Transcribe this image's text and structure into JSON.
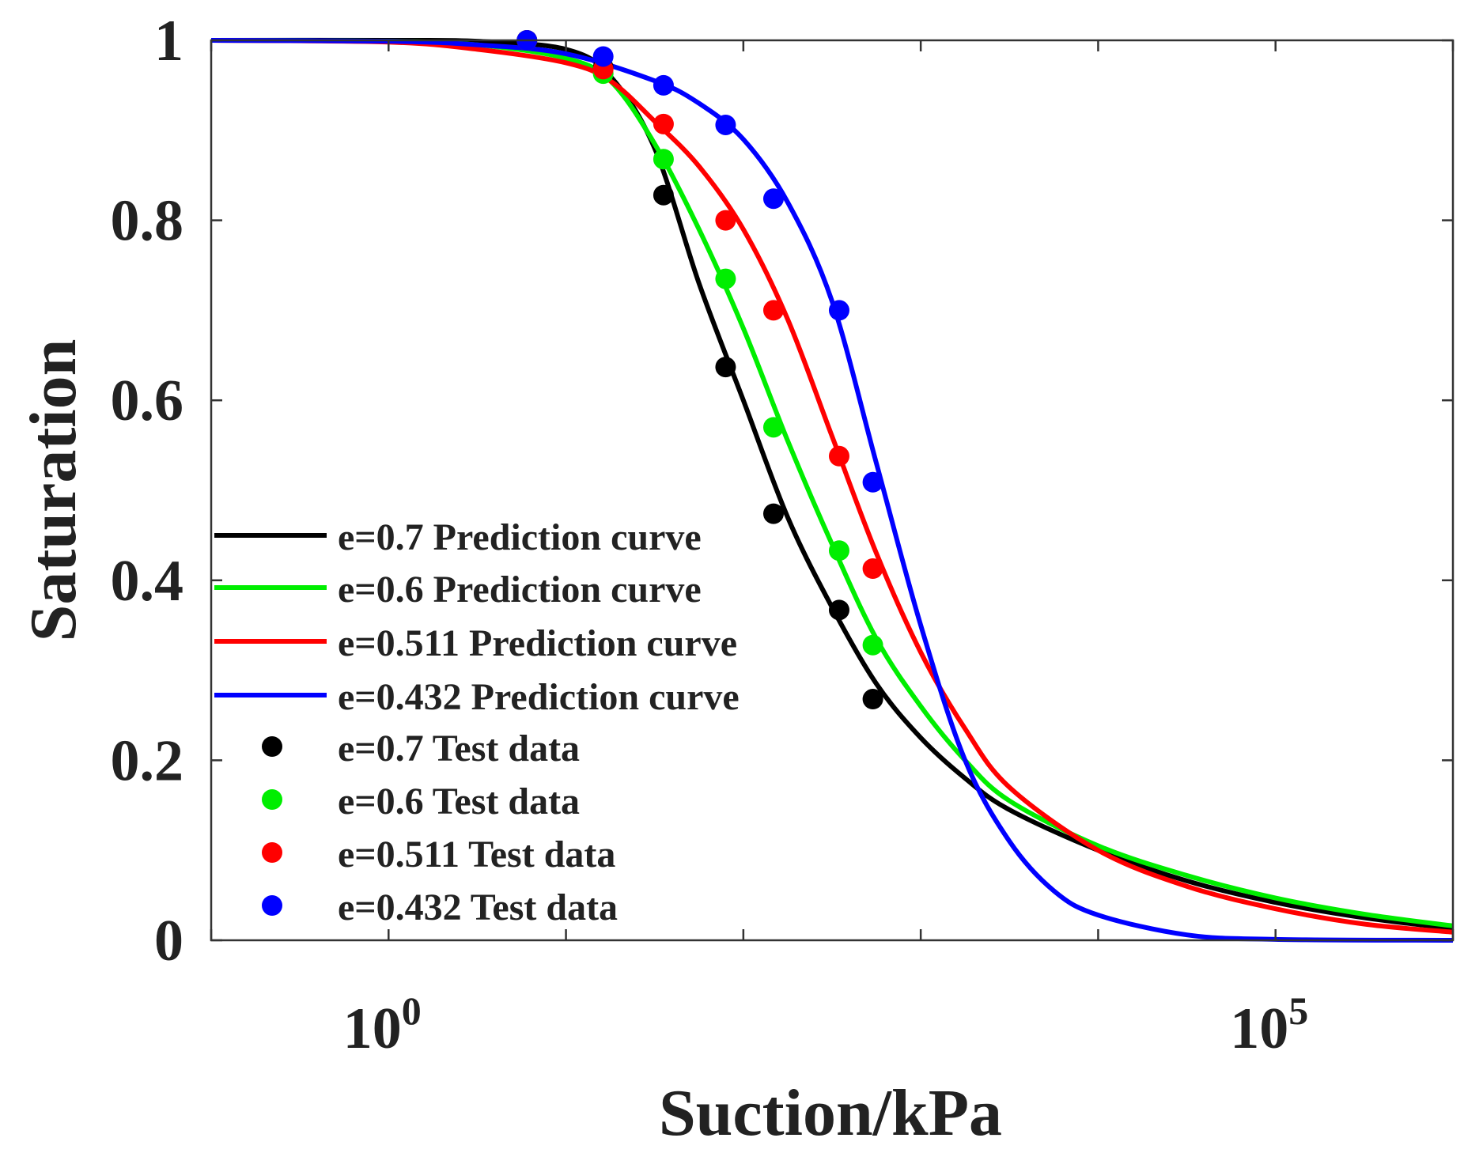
{
  "chart_data": {
    "type": "line",
    "title": "",
    "xlabel": "Suction/kPa",
    "ylabel": "Saturation",
    "xscale": "log",
    "xlim_log10": [
      -1,
      6
    ],
    "ylim": [
      0,
      1
    ],
    "xticks": [
      {
        "base": "10",
        "exp": "0",
        "log10": 0
      },
      {
        "base": "10",
        "exp": "5",
        "log10": 5
      }
    ],
    "yticks": [
      {
        "label": "0",
        "value": 0
      },
      {
        "label": "0.2",
        "value": 0.2
      },
      {
        "label": "0.4",
        "value": 0.4
      },
      {
        "label": "0.6",
        "value": 0.6
      },
      {
        "label": "0.8",
        "value": 0.8
      },
      {
        "label": "1",
        "value": 1
      }
    ],
    "grid": false,
    "legend_position": "lower-left",
    "curves": [
      {
        "name": "e=0.7 Prediction curve",
        "color": "#000000",
        "log10_x": [
          -1,
          0,
          0.5,
          1,
          1.25,
          1.5,
          1.75,
          2,
          2.25,
          2.5,
          2.75,
          3,
          3.25,
          3.5,
          4,
          4.5,
          5,
          5.5,
          6
        ],
        "y": [
          1,
          1,
          0.999,
          0.99,
          0.96,
          0.88,
          0.73,
          0.6,
          0.47,
          0.37,
          0.285,
          0.225,
          0.18,
          0.145,
          0.1,
          0.066,
          0.042,
          0.025,
          0.013
        ]
      },
      {
        "name": "e=0.6 Prediction curve",
        "color": "#00ee00",
        "log10_x": [
          -1,
          0,
          0.5,
          1,
          1.25,
          1.5,
          1.75,
          2,
          2.25,
          2.5,
          2.75,
          3,
          3.25,
          3.5,
          4,
          4.5,
          5,
          5.5,
          6
        ],
        "y": [
          1,
          0.999,
          0.995,
          0.98,
          0.955,
          0.885,
          0.79,
          0.68,
          0.555,
          0.44,
          0.335,
          0.26,
          0.2,
          0.155,
          0.105,
          0.072,
          0.047,
          0.029,
          0.016
        ]
      },
      {
        "name": "e=0.511 Prediction curve",
        "color": "#ff0000",
        "log10_x": [
          -1,
          0,
          0.5,
          1,
          1.25,
          1.5,
          1.75,
          2,
          2.25,
          2.5,
          2.75,
          3,
          3.25,
          3.5,
          4,
          4.5,
          5,
          5.5,
          6
        ],
        "y": [
          1,
          0.998,
          0.99,
          0.975,
          0.955,
          0.91,
          0.86,
          0.79,
          0.69,
          0.56,
          0.43,
          0.32,
          0.235,
          0.17,
          0.1,
          0.06,
          0.035,
          0.018,
          0.009
        ]
      },
      {
        "name": "e=0.432 Prediction curve",
        "color": "#0000ff",
        "log10_x": [
          -1,
          0,
          0.5,
          1,
          1.5,
          1.75,
          2,
          2.25,
          2.5,
          2.75,
          3,
          3.25,
          3.5,
          3.75,
          4,
          4.5,
          5,
          6
        ],
        "y": [
          1,
          0.999,
          0.995,
          0.985,
          0.955,
          0.93,
          0.89,
          0.82,
          0.71,
          0.53,
          0.35,
          0.2,
          0.11,
          0.055,
          0.028,
          0.006,
          0.001,
          0
        ]
      }
    ],
    "test_data": [
      {
        "name": "e=0.7 Test data",
        "color": "#000000",
        "log10_x": [
          0.78,
          1.21,
          1.55,
          1.9,
          2.17,
          2.54,
          2.73
        ],
        "y": [
          1.0,
          0.97,
          0.828,
          0.637,
          0.474,
          0.367,
          0.268
        ]
      },
      {
        "name": "e=0.6 Test data",
        "color": "#00ee00",
        "log10_x": [
          0.78,
          1.21,
          1.55,
          1.9,
          2.17,
          2.54,
          2.73
        ],
        "y": [
          1.0,
          0.963,
          0.868,
          0.735,
          0.57,
          0.433,
          0.328
        ]
      },
      {
        "name": "e=0.511 Test data",
        "color": "#ff0000",
        "log10_x": [
          0.78,
          1.21,
          1.55,
          1.9,
          2.17,
          2.54,
          2.73
        ],
        "y": [
          1.0,
          0.968,
          0.907,
          0.8,
          0.7,
          0.538,
          0.413
        ]
      },
      {
        "name": "e=0.432 Test data",
        "color": "#0000ff",
        "log10_x": [
          0.78,
          1.21,
          1.55,
          1.9,
          2.17,
          2.54,
          2.73
        ],
        "y": [
          1.0,
          0.982,
          0.95,
          0.906,
          0.824,
          0.7,
          0.509
        ]
      }
    ]
  }
}
